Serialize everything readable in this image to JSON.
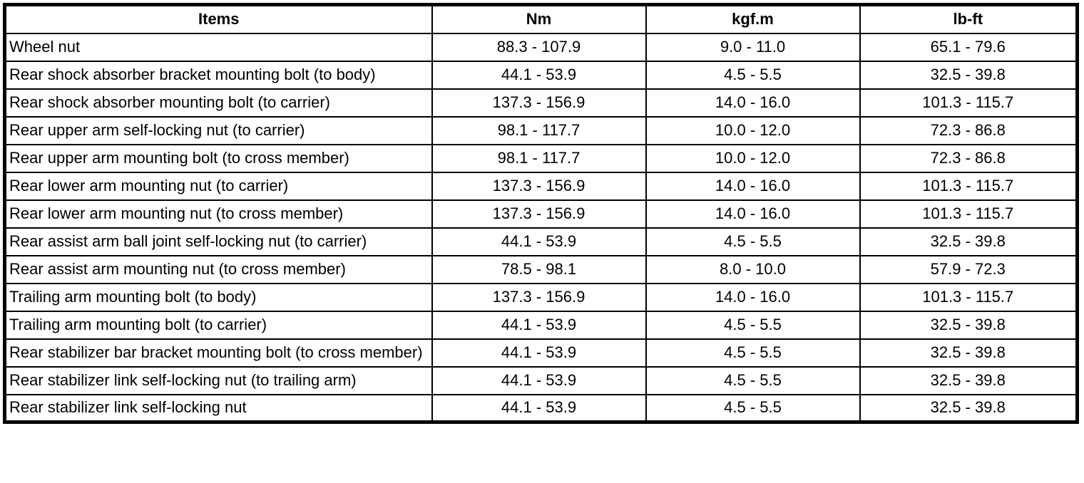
{
  "table": {
    "columns": {
      "items": "Items",
      "nm": "Nm",
      "kgfm": "kgf.m",
      "lbft": "lb-ft"
    },
    "rows": [
      {
        "item": "Wheel nut",
        "nm": "88.3 - 107.9",
        "kgfm": "9.0 - 11.0",
        "lbft": "65.1 - 79.6"
      },
      {
        "item": "Rear shock absorber bracket mounting bolt (to body)",
        "nm": "44.1 - 53.9",
        "kgfm": "4.5 - 5.5",
        "lbft": "32.5 - 39.8"
      },
      {
        "item": "Rear shock absorber mounting bolt (to carrier)",
        "nm": "137.3 - 156.9",
        "kgfm": "14.0 - 16.0",
        "lbft": "101.3 - 115.7"
      },
      {
        "item": "Rear upper arm self-locking nut (to carrier)",
        "nm": "98.1 - 117.7",
        "kgfm": "10.0 - 12.0",
        "lbft": "72.3 - 86.8"
      },
      {
        "item": "Rear upper arm mounting bolt (to cross member)",
        "nm": "98.1 - 117.7",
        "kgfm": "10.0 - 12.0",
        "lbft": "72.3 - 86.8"
      },
      {
        "item": "Rear lower arm mounting nut (to carrier)",
        "nm": "137.3 - 156.9",
        "kgfm": "14.0 - 16.0",
        "lbft": "101.3 - 115.7"
      },
      {
        "item": "Rear lower arm mounting nut (to cross member)",
        "nm": "137.3 - 156.9",
        "kgfm": "14.0 - 16.0",
        "lbft": "101.3 - 115.7"
      },
      {
        "item": "Rear assist arm ball joint self-locking nut (to carrier)",
        "nm": "44.1 - 53.9",
        "kgfm": "4.5 - 5.5",
        "lbft": "32.5 - 39.8"
      },
      {
        "item": "Rear assist arm mounting nut (to cross member)",
        "nm": "78.5 - 98.1",
        "kgfm": "8.0 - 10.0",
        "lbft": "57.9 - 72.3"
      },
      {
        "item": "Trailing arm mounting bolt (to body)",
        "nm": "137.3 - 156.9",
        "kgfm": "14.0 - 16.0",
        "lbft": "101.3 - 115.7"
      },
      {
        "item": "Trailing arm mounting bolt (to carrier)",
        "nm": "44.1 - 53.9",
        "kgfm": "4.5 - 5.5",
        "lbft": "32.5 - 39.8"
      },
      {
        "item": "Rear stabilizer bar bracket mounting bolt (to cross member)",
        "nm": "44.1 - 53.9",
        "kgfm": "4.5 - 5.5",
        "lbft": "32.5 - 39.8"
      },
      {
        "item": "Rear stabilizer link self-locking nut (to trailing arm)",
        "nm": "44.1 - 53.9",
        "kgfm": "4.5 - 5.5",
        "lbft": "32.5 - 39.8"
      },
      {
        "item": "Rear stabilizer link self-locking nut",
        "nm": "44.1 - 53.9",
        "kgfm": "4.5 - 5.5",
        "lbft": "32.5 - 39.8"
      }
    ]
  },
  "colors": {
    "border": "#000000",
    "background": "#ffffff",
    "text": "#000000"
  }
}
